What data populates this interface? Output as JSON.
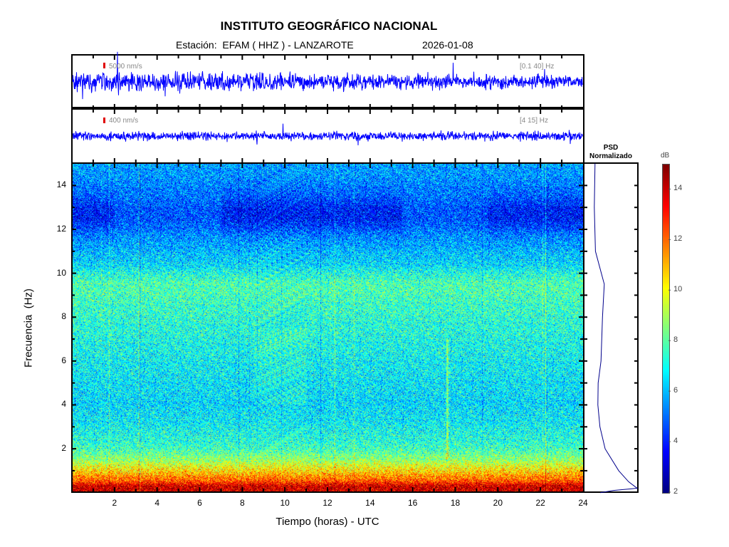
{
  "header": {
    "title": "INSTITUTO GEOGRÁFICO NACIONAL",
    "station": "Estación:  EFAM ( HHZ ) - LANZAROTE",
    "date": "2026-01-08"
  },
  "traces": [
    {
      "scale": "5000 nm/s",
      "band": "[0.1 40] Hz",
      "amplitude": 0.12
    },
    {
      "scale": "400 nm/s",
      "band": "[4 15] Hz",
      "amplitude": 0.05
    }
  ],
  "psd": {
    "title_line1": "PSD",
    "title_line2": "Normalizado"
  },
  "colorbar": {
    "label": "dB",
    "min": 2,
    "max": 15,
    "ticks": [
      "2",
      "4",
      "6",
      "8",
      "10",
      "12",
      "14"
    ]
  },
  "colors": {
    "trace": "#0000ff",
    "psd_line": "#00008b",
    "scale_bar": "#e00000"
  },
  "chart_data": {
    "type": "heatmap",
    "title": "INSTITUTO GEOGRÁFICO NACIONAL",
    "xlabel": "Tiempo (horas) - UTC",
    "ylabel": "Frecuencia  (Hz)",
    "xlim": [
      0,
      24
    ],
    "ylim": [
      0,
      15
    ],
    "xticks": [
      "2",
      "4",
      "6",
      "8",
      "10",
      "12",
      "14",
      "16",
      "18",
      "20",
      "22",
      "24"
    ],
    "yticks": [
      "2",
      "4",
      "6",
      "8",
      "10",
      "12",
      "14"
    ],
    "clim": [
      2,
      15
    ],
    "colormap": "jet",
    "mean_db_profile": {
      "freq_hz": [
        0,
        0.3,
        0.5,
        1,
        1.5,
        2,
        3,
        4,
        6,
        8,
        9.5,
        10.5,
        12.5,
        14,
        15
      ],
      "db": [
        14,
        14,
        12.5,
        10.5,
        8.8,
        7.6,
        6.9,
        6.5,
        6.9,
        7.4,
        7.9,
        6.4,
        5.0,
        5.4,
        5.8
      ]
    },
    "psd_normalized": {
      "freq_hz": [
        15,
        13,
        11,
        9.5,
        8,
        6,
        5,
        4,
        3,
        2,
        1,
        0.5,
        0.2,
        0.1,
        0
      ],
      "value": [
        0.2,
        0.18,
        0.22,
        0.37,
        0.33,
        0.3,
        0.26,
        0.25,
        0.3,
        0.4,
        0.65,
        0.85,
        1.0,
        0.55,
        0.3
      ]
    },
    "features": [
      {
        "type": "vertical_line",
        "time_h": 17.6,
        "freq_hz": [
          1.5,
          7
        ]
      },
      {
        "type": "patch",
        "time_h": [
          8.5,
          11
        ],
        "freq_hz": [
          4,
          7.5
        ]
      }
    ]
  },
  "labels": {
    "xlabel": "Tiempo (horas) - UTC",
    "ylabel": "Frecuencia  (Hz)"
  }
}
